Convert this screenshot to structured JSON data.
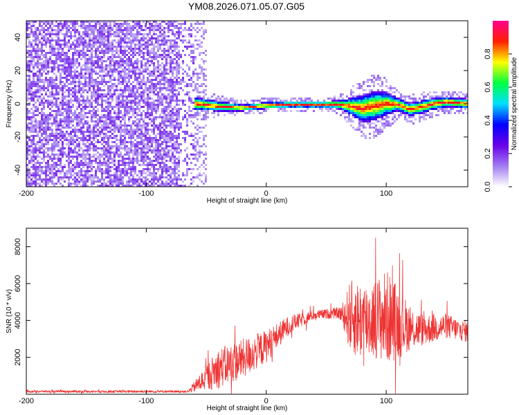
{
  "title": "YM08.2026.071.05.07.G05",
  "chart_data": [
    {
      "type": "heatmap",
      "xlabel": "Height of straight line (km)",
      "ylabel": "Frequency (Hz)",
      "xlim": [
        -200,
        168
      ],
      "ylim": [
        -50,
        50
      ],
      "xticks": [
        -200,
        -100,
        0,
        100
      ],
      "yticks": [
        -40,
        -20,
        0,
        20,
        40
      ],
      "colorbar": {
        "label": "Normalized spectral amplitude",
        "range": [
          0,
          1
        ],
        "ticks": [
          0.0,
          0.2,
          0.4,
          0.6,
          0.8
        ],
        "colors": [
          "#ffffff",
          "#a07cf0",
          "#6a00e8",
          "#0000ff",
          "#00e0ff",
          "#00ff40",
          "#ffff00",
          "#ff2000",
          "#ff0090"
        ]
      },
      "noise_region_x": [
        -200,
        -60
      ],
      "signal_track": {
        "x": [
          -60,
          -40,
          -20,
          0,
          20,
          40,
          60,
          70,
          80,
          90,
          100,
          110,
          120,
          130,
          140,
          150,
          160,
          168
        ],
        "frequency": [
          0,
          -1.5,
          -2.5,
          -1,
          -0.5,
          -0.5,
          -0.5,
          -1.5,
          -3,
          -1.5,
          0,
          -0.5,
          -3.5,
          -2,
          0,
          1,
          0.5,
          0
        ],
        "halfwidth": [
          4,
          3,
          2,
          2,
          2,
          2,
          2.5,
          5,
          8,
          9,
          7,
          4,
          4,
          4,
          3.5,
          3,
          3,
          3
        ]
      }
    },
    {
      "type": "line",
      "xlabel": "Height of straight line (km)",
      "ylabel": "SNR (10 * v/v)",
      "xlim": [
        -200,
        168
      ],
      "ylim": [
        0,
        9000
      ],
      "xticks": [
        -200,
        -100,
        0,
        100
      ],
      "yticks": [
        2000,
        4000,
        6000,
        8000
      ],
      "color": "#ee3333",
      "envelope": {
        "x": [
          -200,
          -100,
          -65,
          -60,
          -50,
          -40,
          -20,
          0,
          20,
          40,
          60,
          65,
          70,
          80,
          90,
          100,
          110,
          120,
          130,
          140,
          150,
          160,
          168
        ],
        "mean": [
          150,
          150,
          150,
          400,
          900,
          1400,
          1900,
          2600,
          3800,
          4300,
          4400,
          4300,
          4200,
          4000,
          4100,
          4200,
          3900,
          3600,
          3500,
          3600,
          3700,
          3500,
          3400
        ],
        "spread": [
          60,
          60,
          60,
          300,
          700,
          1100,
          1100,
          900,
          500,
          250,
          300,
          800,
          2000,
          2200,
          2100,
          2600,
          2000,
          1200,
          900,
          800,
          700,
          600,
          600
        ]
      }
    }
  ]
}
